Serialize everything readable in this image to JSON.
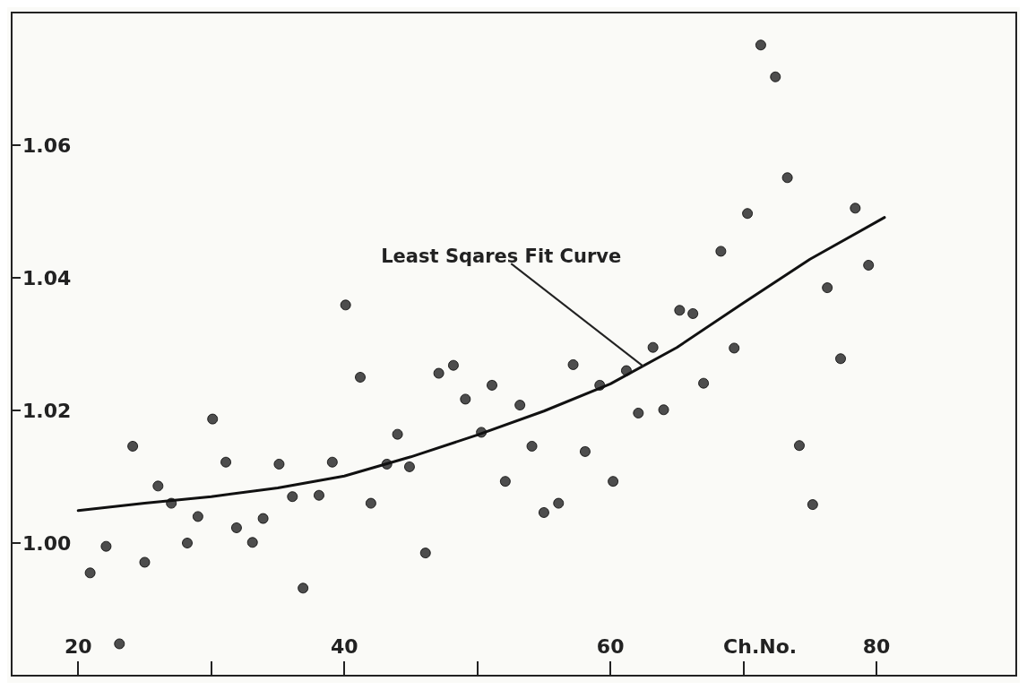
{
  "chart_data": {
    "type": "scatter",
    "xlabel": "Ch.No.",
    "xlim": [
      15,
      90.5
    ],
    "ylim": [
      0.98,
      1.08
    ],
    "xticks": [
      20,
      {
        "value": 30,
        "label": null
      },
      40,
      {
        "value": 50,
        "label": null
      },
      60,
      {
        "value": 70,
        "label": null
      },
      80
    ],
    "yticks": [
      {
        "value": 1,
        "label": "1.00"
      },
      1.02,
      1.04,
      1.06
    ],
    "grid": false,
    "marker": "circle",
    "annotations": [
      {
        "text": "Least Sqares Fit Curve",
        "x": 62.5,
        "y": 1.0266
      }
    ],
    "series": [
      {
        "color": "#222222",
        "x": [
          20.9,
          22.1,
          23.1,
          24.1,
          25.0,
          26.0,
          27.0,
          28.2,
          29.0,
          30.1,
          31.1,
          31.9,
          33.1,
          33.9,
          35.1,
          36.1,
          36.9,
          38.1,
          39.1,
          40.1,
          41.2,
          42.0,
          43.2,
          44.0,
          44.9,
          46.1,
          47.1,
          48.2,
          49.1,
          50.3,
          51.1,
          52.1,
          53.2,
          54.1,
          55.0,
          56.1,
          57.2,
          58.1,
          59.2,
          60.2,
          61.2,
          62.1,
          63.2,
          64.0,
          65.2,
          66.2,
          67.0,
          68.3,
          69.3,
          70.3,
          71.3,
          72.4,
          73.3,
          74.2,
          75.2,
          76.3,
          77.3,
          78.4,
          79.4
        ],
        "values": [
          0.9955,
          0.9995,
          0.9848,
          1.0146,
          0.9971,
          1.0086,
          1.006,
          1.0,
          1.004,
          1.0187,
          1.0122,
          1.0023,
          1.0001,
          1.0037,
          1.0119,
          1.007,
          0.9932,
          1.0072,
          1.0122,
          1.0359,
          1.025,
          1.006,
          1.0119,
          1.0164,
          1.0115,
          0.9985,
          1.0256,
          1.0268,
          1.0217,
          1.0167,
          1.0238,
          1.0093,
          1.0208,
          1.0146,
          1.0046,
          1.006,
          1.0269,
          1.0138,
          1.0238,
          1.0093,
          1.026,
          1.0196,
          1.0295,
          1.0201,
          1.0351,
          1.0346,
          1.0241,
          1.044,
          1.0294,
          1.0497,
          1.0751,
          1.0703,
          1.0551,
          1.0147,
          1.0058,
          1.0385,
          1.0278,
          1.0505,
          1.0419
        ]
      },
      {
        "type": "line",
        "color": "#111111",
        "marker": "none",
        "x": [
          20,
          25,
          30,
          35,
          40,
          45,
          50,
          55,
          60,
          65,
          70,
          75,
          80.6
        ],
        "values": [
          1.0049,
          1.006,
          1.007,
          1.0083,
          1.0101,
          1.013,
          1.0163,
          1.0199,
          1.024,
          1.0295,
          1.0362,
          1.0428,
          1.0491
        ]
      }
    ]
  }
}
